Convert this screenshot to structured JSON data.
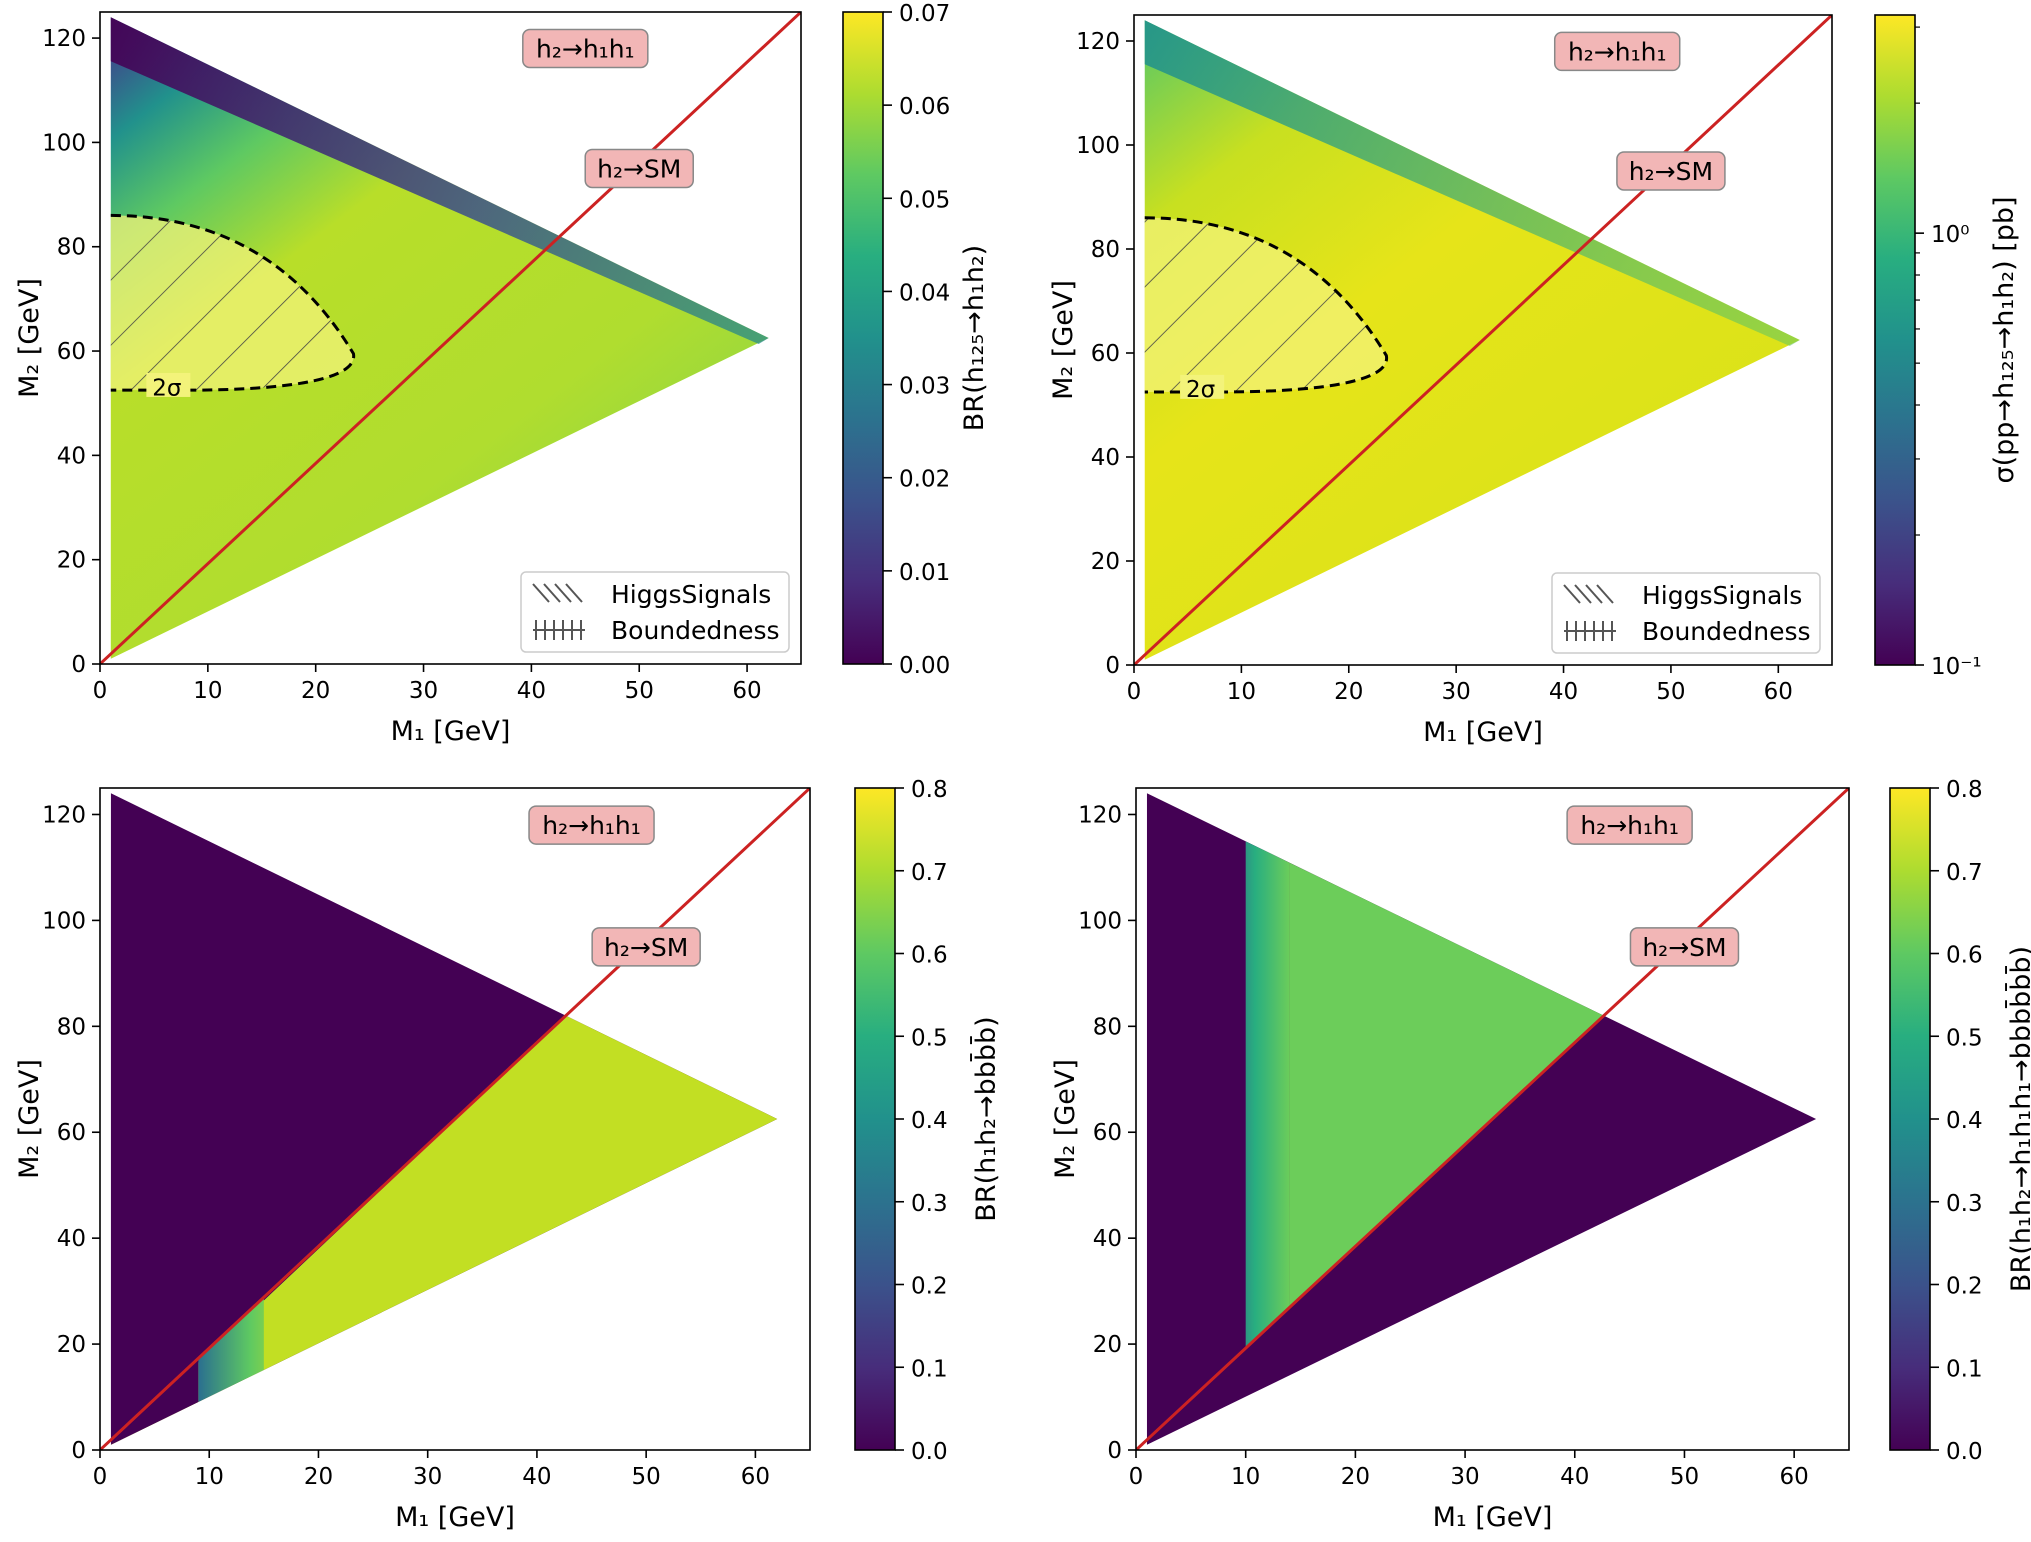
{
  "chart_data": [
    {
      "type": "heatmap",
      "title": "",
      "xlabel": "M₁ [GeV]",
      "ylabel": "M₂ [GeV]",
      "xlim": [
        0,
        65
      ],
      "ylim": [
        0,
        125
      ],
      "xticks": [
        "0",
        "10",
        "20",
        "30",
        "40",
        "50",
        "60"
      ],
      "yticks": [
        "0",
        "20",
        "40",
        "60",
        "80",
        "100",
        "120"
      ],
      "region_vertices": [
        [
          1,
          124
        ],
        [
          62,
          62.5
        ],
        [
          1,
          1
        ]
      ],
      "diagonal_line": {
        "from": [
          0,
          0
        ],
        "to": [
          65,
          125
        ],
        "color": "#cc2222"
      },
      "colorbar": {
        "label": "BR(h₁₂₅→h₁h₂)",
        "scale": "linear",
        "range": [
          0.0,
          0.07
        ],
        "ticks": [
          "0.00",
          "0.01",
          "0.02",
          "0.03",
          "0.04",
          "0.05",
          "0.06",
          "0.07"
        ],
        "colormap": "viridis"
      },
      "annotations": [
        "h₂→h₁h₁",
        "h₂→SM"
      ],
      "contour_label": "2σ",
      "legend": {
        "position": "lower-right",
        "entries": [
          "HiggsSignals",
          "Boundedness"
        ]
      },
      "values": {
        "upper_edge": 0.0,
        "interior": 0.058,
        "contour_region": 0.065
      }
    },
    {
      "type": "heatmap",
      "title": "",
      "xlabel": "M₁ [GeV]",
      "ylabel": "M₂ [GeV]",
      "xlim": [
        0,
        65
      ],
      "ylim": [
        0,
        125
      ],
      "xticks": [
        "0",
        "10",
        "20",
        "30",
        "40",
        "50",
        "60"
      ],
      "yticks": [
        "0",
        "20",
        "40",
        "60",
        "80",
        "100",
        "120"
      ],
      "region_vertices": [
        [
          1,
          124
        ],
        [
          62,
          62.5
        ],
        [
          1,
          1
        ]
      ],
      "diagonal_line": {
        "from": [
          0,
          0
        ],
        "to": [
          65,
          125
        ],
        "color": "#cc2222"
      },
      "colorbar": {
        "label": "σ(pp→h₁₂₅→h₁h₂) [pb]",
        "scale": "log",
        "range": [
          0.1,
          3.2
        ],
        "ticks": [
          "10⁻¹",
          "10⁰"
        ],
        "colormap": "viridis"
      },
      "annotations": [
        "h₂→h₁h₁",
        "h₂→SM"
      ],
      "contour_label": "2σ",
      "legend": {
        "position": "lower-right",
        "entries": [
          "HiggsSignals",
          "Boundedness"
        ]
      },
      "values": {
        "upper_edge": 1.0,
        "interior": 2.5,
        "contour_region": 2.9
      }
    },
    {
      "type": "heatmap",
      "title": "",
      "xlabel": "M₁ [GeV]",
      "ylabel": "M₂ [GeV]",
      "xlim": [
        0,
        65
      ],
      "ylim": [
        0,
        125
      ],
      "xticks": [
        "0",
        "10",
        "20",
        "30",
        "40",
        "50",
        "60"
      ],
      "yticks": [
        "0",
        "20",
        "40",
        "60",
        "80",
        "100",
        "120"
      ],
      "region_vertices": [
        [
          1,
          124
        ],
        [
          62,
          62.5
        ],
        [
          1,
          1
        ]
      ],
      "diagonal_line": {
        "from": [
          0,
          0
        ],
        "to": [
          65,
          125
        ],
        "color": "#cc2222"
      },
      "colorbar": {
        "label": "BR(h₁h₂→bbb̄b̄)",
        "scale": "linear",
        "range": [
          0.0,
          0.8
        ],
        "ticks": [
          "0.0",
          "0.1",
          "0.2",
          "0.3",
          "0.4",
          "0.5",
          "0.6",
          "0.7",
          "0.8"
        ],
        "colormap": "viridis"
      },
      "annotations": [
        "h₂→h₁h₁",
        "h₂→SM"
      ],
      "values": {
        "above_diagonal": 0.0,
        "below_diagonal": 0.75,
        "transition_M1": 10
      }
    },
    {
      "type": "heatmap",
      "title": "",
      "xlabel": "M₁ [GeV]",
      "ylabel": "M₂ [GeV]",
      "xlim": [
        0,
        65
      ],
      "ylim": [
        0,
        125
      ],
      "xticks": [
        "0",
        "10",
        "20",
        "30",
        "40",
        "50",
        "60"
      ],
      "yticks": [
        "0",
        "20",
        "40",
        "60",
        "80",
        "100",
        "120"
      ],
      "region_vertices": [
        [
          1,
          124
        ],
        [
          62,
          62.5
        ],
        [
          1,
          1
        ]
      ],
      "diagonal_line": {
        "from": [
          0,
          0
        ],
        "to": [
          65,
          125
        ],
        "color": "#cc2222"
      },
      "colorbar": {
        "label": "BR(h₁h₂→h₁h₁h₁→bbbb̄b̄b̄)",
        "scale": "linear",
        "range": [
          0.0,
          0.8
        ],
        "ticks": [
          "0.0",
          "0.1",
          "0.2",
          "0.3",
          "0.4",
          "0.5",
          "0.6",
          "0.7",
          "0.8"
        ],
        "colormap": "viridis"
      },
      "annotations": [
        "h₂→h₁h₁",
        "h₂→SM"
      ],
      "values": {
        "below_diagonal": 0.0,
        "M1_below_10": 0.0,
        "above_diagonal_M1_above_14": 0.65
      }
    }
  ],
  "colors": {
    "diag_line": "#cc2222",
    "annot_bg": "#f2b6b6",
    "annot_edge": "#888888",
    "contour_fill": "#f3f37a"
  }
}
